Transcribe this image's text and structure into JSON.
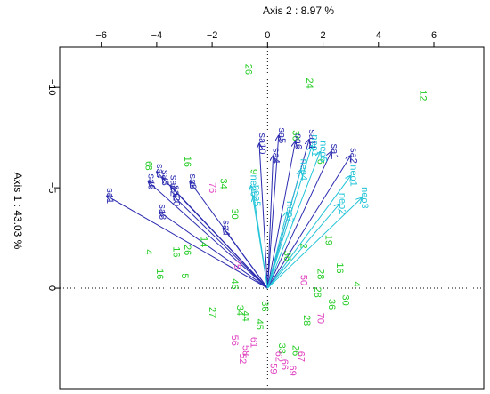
{
  "chart_data": {
    "type": "scatter",
    "title": "Axis 2 : 8.97 %",
    "ylabel": "Axis 1 : 43.03 %",
    "xlabel": "",
    "xlim": [
      -7.5,
      7.8
    ],
    "ylim": [
      -12.0,
      5.0
    ],
    "y_reversed": true,
    "x_ticks": [
      -6,
      -4,
      -2,
      0,
      2,
      4,
      6
    ],
    "y_ticks": [
      -10,
      -5,
      0
    ],
    "grid": false,
    "reference_lines": {
      "x": 0,
      "y": 0,
      "style": "dotted"
    },
    "colors": {
      "frame": "#000000",
      "vector_blue": "#2b2bb0",
      "vector_cyan": "#22c4d8",
      "point_green": "#22cc22",
      "point_magenta": "#e040c0"
    },
    "vectors": [
      {
        "label": "sa1",
        "x": -5.8,
        "y": -4.6,
        "color": "#2b2bb0"
      },
      {
        "label": "sa6",
        "x": -4.3,
        "y": -5.3,
        "color": "#2b2bb0"
      },
      {
        "label": "sa7",
        "x": -4.0,
        "y": -5.8,
        "color": "#2b2bb0"
      },
      {
        "label": "sa3",
        "x": -3.8,
        "y": -5.5,
        "color": "#2b2bb0"
      },
      {
        "label": "sa12",
        "x": -3.5,
        "y": -5.1,
        "color": "#2b2bb0"
      },
      {
        "label": "sa20",
        "x": -3.4,
        "y": -4.6,
        "color": "#2b2bb0"
      },
      {
        "label": "sa8",
        "x": -3.9,
        "y": -3.8,
        "color": "#2b2bb0"
      },
      {
        "label": "sa9",
        "x": -2.8,
        "y": -5.3,
        "color": "#2b2bb0"
      },
      {
        "label": "sa4",
        "x": -1.6,
        "y": -3.0,
        "color": "#2b2bb0"
      },
      {
        "label": "sa10",
        "x": -0.3,
        "y": -7.2,
        "color": "#2b2bb0"
      },
      {
        "label": "sa5",
        "x": 0.4,
        "y": -7.6,
        "color": "#2b2bb0"
      },
      {
        "label": "sa6",
        "x": 1.0,
        "y": -7.3,
        "color": "#2b2bb0"
      },
      {
        "label": "sa11",
        "x": 1.5,
        "y": -7.4,
        "color": "#2b2bb0"
      },
      {
        "label": "sa2",
        "x": 3.0,
        "y": -6.6,
        "color": "#2b2bb0"
      },
      {
        "label": "sa1",
        "x": 2.3,
        "y": -6.8,
        "color": "#2b2bb0"
      },
      {
        "label": "sa4",
        "x": 0.2,
        "y": -6.6,
        "color": "#2b2bb0"
      },
      {
        "label": "neo1",
        "x": 1.6,
        "y": -7.1,
        "color": "#22c4d8"
      },
      {
        "label": "neo5",
        "x": 1.9,
        "y": -6.8,
        "color": "#22c4d8"
      },
      {
        "label": "neo4",
        "x": 1.2,
        "y": -5.9,
        "color": "#22c4d8"
      },
      {
        "label": "neo6",
        "x": -0.6,
        "y": -5.1,
        "color": "#22c4d8"
      },
      {
        "label": "neo5",
        "x": -0.5,
        "y": -4.6,
        "color": "#22c4d8"
      },
      {
        "label": "neo2",
        "x": 2.6,
        "y": -4.2,
        "color": "#22c4d8"
      },
      {
        "label": "neo3",
        "x": 3.4,
        "y": -4.5,
        "color": "#22c4d8"
      },
      {
        "label": "neo1",
        "x": 3.0,
        "y": -5.6,
        "color": "#22c4d8"
      },
      {
        "label": "neo7",
        "x": 0.7,
        "y": -3.8,
        "color": "#22c4d8"
      }
    ],
    "points": [
      {
        "label": "12",
        "x": 5.5,
        "y": -9.6,
        "color": "#22cc22"
      },
      {
        "label": "26",
        "x": -0.8,
        "y": -10.9,
        "color": "#22cc22"
      },
      {
        "label": "24",
        "x": 1.4,
        "y": -10.2,
        "color": "#22cc22"
      },
      {
        "label": "6",
        "x": -4.4,
        "y": -6.2,
        "color": "#22cc22"
      },
      {
        "label": "8",
        "x": -4.4,
        "y": -6.0,
        "color": "#22cc22"
      },
      {
        "label": "16",
        "x": -3.0,
        "y": -6.3,
        "color": "#22cc22"
      },
      {
        "label": "76",
        "x": -2.1,
        "y": -5.0,
        "color": "#e040c0"
      },
      {
        "label": "9",
        "x": -0.6,
        "y": -5.8,
        "color": "#22cc22"
      },
      {
        "label": "34",
        "x": -1.7,
        "y": -5.2,
        "color": "#22cc22"
      },
      {
        "label": "30",
        "x": -1.3,
        "y": -3.7,
        "color": "#22cc22"
      },
      {
        "label": "36",
        "x": 0.9,
        "y": -7.6,
        "color": "#22cc22"
      },
      {
        "label": "6",
        "x": 1.8,
        "y": -6.3,
        "color": "#22cc22"
      },
      {
        "label": "4",
        "x": -4.4,
        "y": -1.8,
        "color": "#22cc22"
      },
      {
        "label": "16",
        "x": -4.0,
        "y": -0.7,
        "color": "#22cc22"
      },
      {
        "label": "26",
        "x": -3.0,
        "y": -1.9,
        "color": "#22cc22"
      },
      {
        "label": "16",
        "x": -3.4,
        "y": -1.8,
        "color": "#22cc22"
      },
      {
        "label": "5",
        "x": -3.1,
        "y": -0.6,
        "color": "#22cc22"
      },
      {
        "label": "14",
        "x": -2.4,
        "y": -2.3,
        "color": "#22cc22"
      },
      {
        "label": "75",
        "x": -1.2,
        "y": -1.2,
        "color": "#e040c0"
      },
      {
        "label": "46",
        "x": -1.3,
        "y": -0.2,
        "color": "#22cc22"
      },
      {
        "label": "36",
        "x": 0.6,
        "y": -1.6,
        "color": "#22cc22"
      },
      {
        "label": "2",
        "x": 1.2,
        "y": -2.1,
        "color": "#22cc22"
      },
      {
        "label": "19",
        "x": 2.1,
        "y": -2.4,
        "color": "#22cc22"
      },
      {
        "label": "16",
        "x": 2.5,
        "y": -1.0,
        "color": "#22cc22"
      },
      {
        "label": "28",
        "x": 1.8,
        "y": -0.7,
        "color": "#22cc22"
      },
      {
        "label": "28",
        "x": 1.7,
        "y": 0.2,
        "color": "#22cc22"
      },
      {
        "label": "50",
        "x": 1.2,
        "y": -0.4,
        "color": "#e040c0"
      },
      {
        "label": "4",
        "x": 3.1,
        "y": -0.2,
        "color": "#22cc22"
      },
      {
        "label": "30",
        "x": 2.7,
        "y": 0.6,
        "color": "#22cc22"
      },
      {
        "label": "36",
        "x": 2.2,
        "y": 0.8,
        "color": "#22cc22"
      },
      {
        "label": "70",
        "x": 1.8,
        "y": 1.5,
        "color": "#e040c0"
      },
      {
        "label": "28",
        "x": 1.3,
        "y": 1.6,
        "color": "#22cc22"
      },
      {
        "label": "27",
        "x": -2.1,
        "y": 1.2,
        "color": "#22cc22"
      },
      {
        "label": "34",
        "x": -1.1,
        "y": 1.1,
        "color": "#22cc22"
      },
      {
        "label": "44",
        "x": -0.9,
        "y": 1.4,
        "color": "#22cc22"
      },
      {
        "label": "36",
        "x": -0.2,
        "y": 0.9,
        "color": "#22cc22"
      },
      {
        "label": "45",
        "x": -0.4,
        "y": 1.8,
        "color": "#22cc22"
      },
      {
        "label": "26",
        "x": 0.9,
        "y": 3.1,
        "color": "#22cc22"
      },
      {
        "label": "33",
        "x": 0.4,
        "y": 3.0,
        "color": "#22cc22"
      },
      {
        "label": "62",
        "x": 0.3,
        "y": 3.4,
        "color": "#e040c0"
      },
      {
        "label": "52",
        "x": -1.0,
        "y": 3.5,
        "color": "#e040c0"
      },
      {
        "label": "56",
        "x": -1.3,
        "y": 2.6,
        "color": "#e040c0"
      },
      {
        "label": "58",
        "x": -0.9,
        "y": 3.1,
        "color": "#e040c0"
      },
      {
        "label": "61",
        "x": -0.6,
        "y": 2.7,
        "color": "#e040c0"
      },
      {
        "label": "59",
        "x": 0.1,
        "y": 4.0,
        "color": "#e040c0"
      },
      {
        "label": "66",
        "x": 0.5,
        "y": 3.8,
        "color": "#e040c0"
      },
      {
        "label": "67",
        "x": 1.1,
        "y": 3.4,
        "color": "#e040c0"
      },
      {
        "label": "69",
        "x": 0.8,
        "y": 4.1,
        "color": "#e040c0"
      }
    ]
  }
}
